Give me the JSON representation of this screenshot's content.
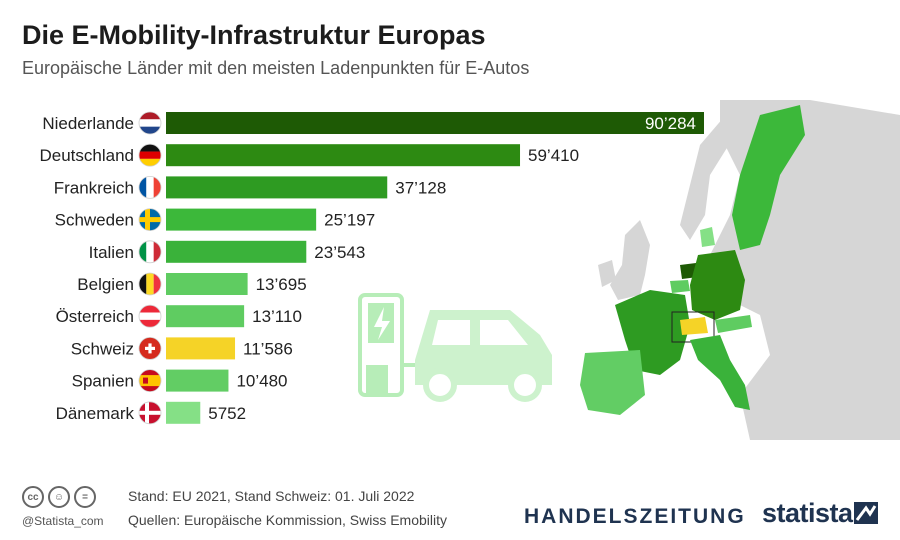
{
  "header": {
    "title": "Die E-Mobility-Infrastruktur Europas",
    "subtitle": "Europäische Länder mit den meisten Ladenpunkten für E-Autos"
  },
  "chart_data": {
    "type": "bar",
    "orientation": "horizontal",
    "title": "Die E-Mobility-Infrastruktur Europas",
    "categories": [
      "Niederlande",
      "Deutschland",
      "Frankreich",
      "Schweden",
      "Italien",
      "Belgien",
      "Österreich",
      "Schweiz",
      "Spanien",
      "Dänemark"
    ],
    "values": [
      90284,
      59410,
      37128,
      25197,
      23543,
      13695,
      13110,
      11586,
      10480,
      5752
    ],
    "value_labels": [
      "90’284",
      "59’410",
      "37’128",
      "25’197",
      "23’543",
      "13’695",
      "13’110",
      "11’586",
      "10’480",
      "5752"
    ],
    "colors": [
      "#1e5a05",
      "#2d8a12",
      "#2e9b22",
      "#3cb83a",
      "#3ab23a",
      "#5fcc61",
      "#5fcc61",
      "#f5d327",
      "#62cd64",
      "#85e086"
    ],
    "flags": [
      "nl",
      "de",
      "fr",
      "se",
      "it",
      "be",
      "at",
      "ch",
      "es",
      "dk"
    ],
    "xlim": [
      0,
      90284
    ],
    "xlabel": "",
    "ylabel": "",
    "grid": false,
    "legend": "none"
  },
  "footer": {
    "license_icons": [
      "cc-icon",
      "by-icon",
      "nd-icon"
    ],
    "handle": "@Statista_com",
    "note_date": "Stand: EU 2021, Stand Schweiz: 01. Juli 2022",
    "note_sources": "Quellen: Europäische Kommission, Swiss Emobility",
    "brand_handelszeitung": "HANDELSZEITUNG",
    "brand_statista": "statista"
  }
}
